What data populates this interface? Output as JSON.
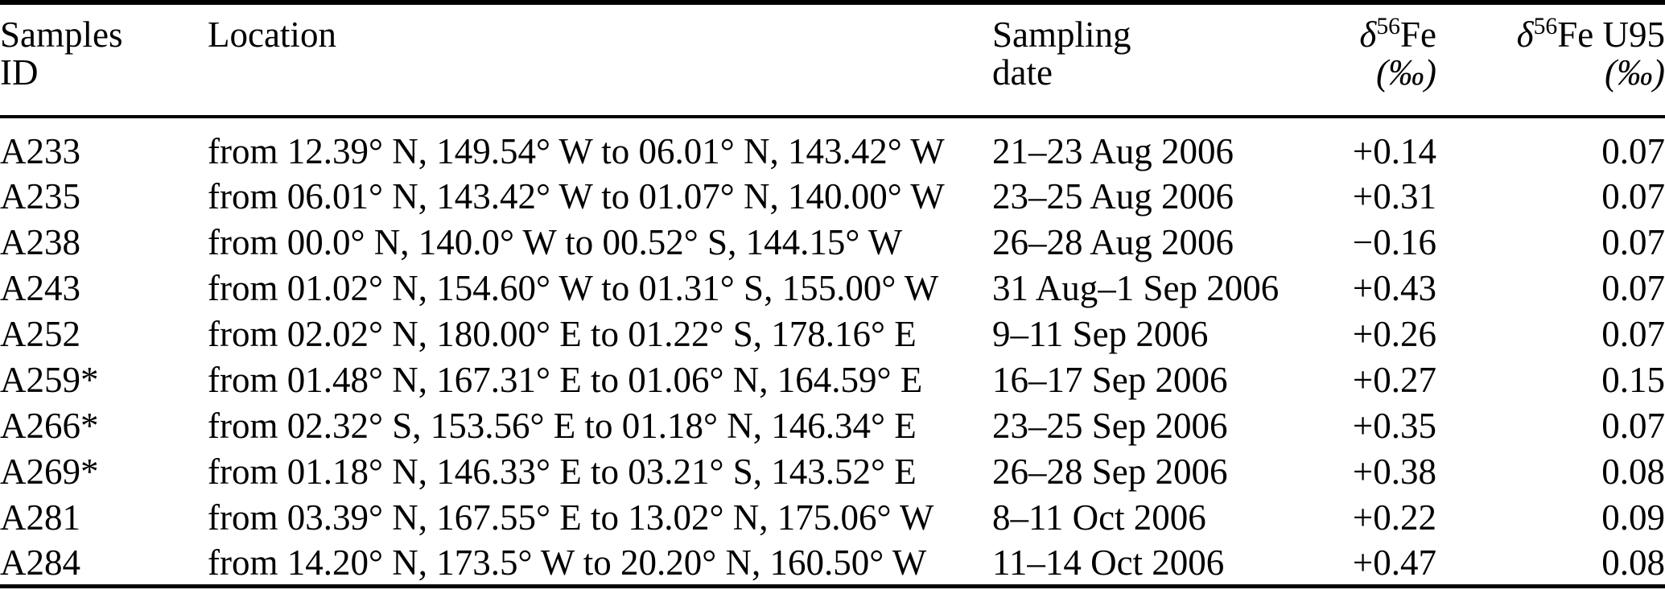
{
  "table": {
    "columns": [
      {
        "line1": "Samples",
        "line2": "ID"
      },
      {
        "line1": "Location",
        "line2": ""
      },
      {
        "line1": "Sampling",
        "line2": "date"
      },
      {
        "delta": "δ",
        "sup": "56",
        "rest": "Fe",
        "unit": "(‰)"
      },
      {
        "delta": "δ",
        "sup": "56",
        "rest": "Fe U95",
        "unit": "(‰)"
      }
    ],
    "rows": [
      {
        "id": "A233",
        "location": "from 12.39° N, 149.54° W to 06.01° N, 143.42° W",
        "date": "21–23 Aug 2006",
        "d56fe": "+0.14",
        "u95": "0.07"
      },
      {
        "id": "A235",
        "location": "from 06.01° N, 143.42° W to 01.07° N, 140.00° W",
        "date": "23–25 Aug 2006",
        "d56fe": "+0.31",
        "u95": "0.07"
      },
      {
        "id": "A238",
        "location": "from 00.0° N, 140.0° W to 00.52° S, 144.15° W",
        "date": "26–28 Aug 2006",
        "d56fe": "−0.16",
        "u95": "0.07"
      },
      {
        "id": "A243",
        "location": "from 01.02° N, 154.60° W to 01.31° S, 155.00° W",
        "date": "31 Aug–1 Sep 2006",
        "d56fe": "+0.43",
        "u95": "0.07"
      },
      {
        "id": "A252",
        "location": "from 02.02° N, 180.00° E to 01.22° S, 178.16° E",
        "date": "9–11 Sep 2006",
        "d56fe": "+0.26",
        "u95": "0.07"
      },
      {
        "id": "A259*",
        "location": "from 01.48° N, 167.31° E to 01.06° N, 164.59° E",
        "date": "16–17 Sep 2006",
        "d56fe": "+0.27",
        "u95": "0.15"
      },
      {
        "id": "A266*",
        "location": "from 02.32° S, 153.56° E to 01.18° N, 146.34° E",
        "date": "23–25 Sep 2006",
        "d56fe": "+0.35",
        "u95": "0.07"
      },
      {
        "id": "A269*",
        "location": "from 01.18° N, 146.33° E to 03.21° S, 143.52° E",
        "date": "26–28 Sep 2006",
        "d56fe": "+0.38",
        "u95": "0.08"
      },
      {
        "id": "A281",
        "location": "from 03.39° N, 167.55° E to 13.02° N, 175.06° W",
        "date": "8–11 Oct 2006",
        "d56fe": "+0.22",
        "u95": "0.09"
      },
      {
        "id": "A284",
        "location": "from 14.20° N, 173.5° W to 20.20° N, 160.50° W",
        "date": "11–14 Oct 2006",
        "d56fe": "+0.47",
        "u95": "0.08"
      }
    ]
  }
}
